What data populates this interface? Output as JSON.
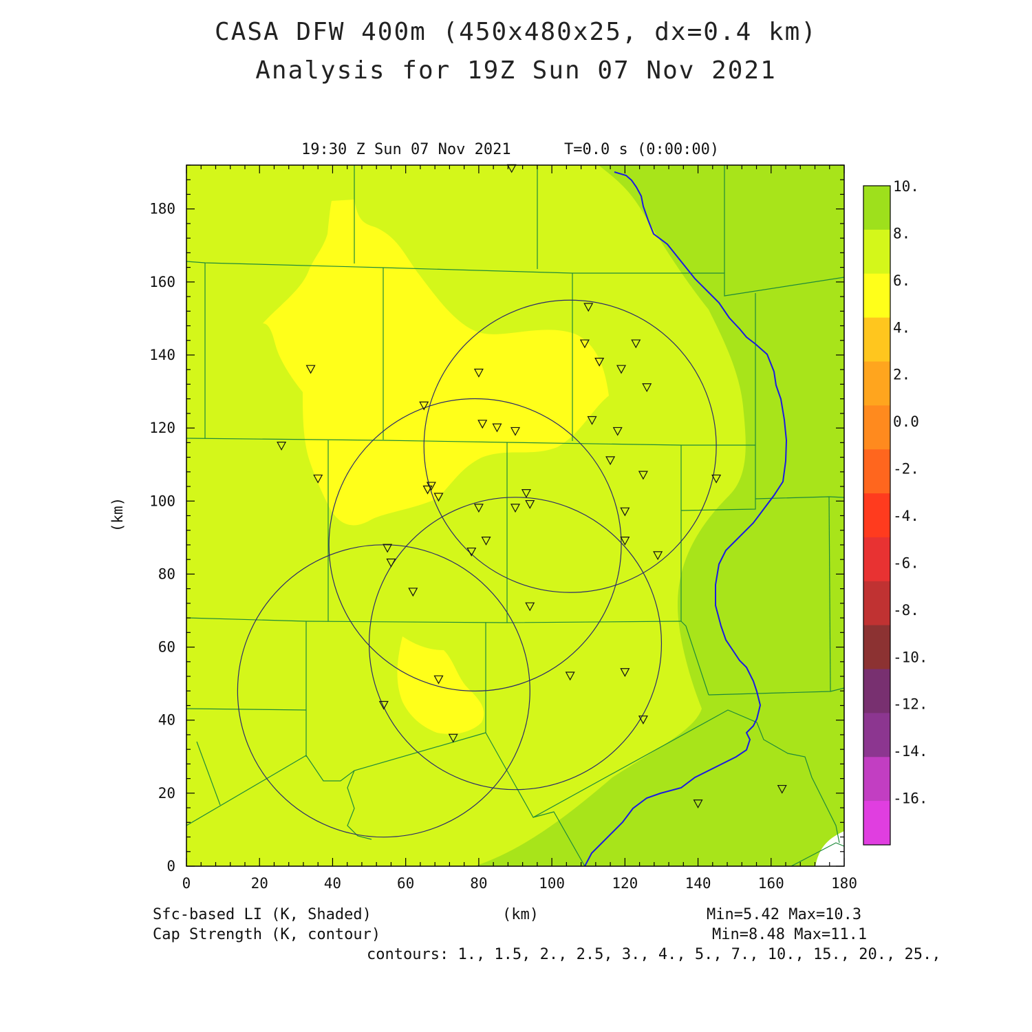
{
  "header": {
    "title_line1": "CASA DFW 400m (450x480x25, dx=0.4 km)",
    "title_line2": "Analysis for 19Z Sun 07 Nov 2021"
  },
  "plot": {
    "time_label": "19:30 Z Sun 07 Nov 2021",
    "t_label": "T=0.0 s (0:00:00)",
    "x_axis_label": "(km)",
    "y_axis_label": "(km)",
    "x_range": [
      0,
      180
    ],
    "y_range": [
      0,
      192
    ],
    "x_ticks": [
      "0",
      "20",
      "40",
      "60",
      "80",
      "100",
      "120",
      "140",
      "160",
      "180"
    ],
    "y_ticks": [
      "0",
      "20",
      "40",
      "60",
      "80",
      "100",
      "120",
      "140",
      "160",
      "180"
    ]
  },
  "colorbar": {
    "labels": [
      "10.",
      "8.",
      "6.",
      "4.",
      "2.",
      "0.0",
      "-2.",
      "-4.",
      "-6.",
      "-8.",
      "-10.",
      "-12.",
      "-14.",
      "-16."
    ],
    "colors": [
      "#9ee01c",
      "#d4f71a",
      "#ffff1a",
      "#ffc61e",
      "#ffa51e",
      "#ff8a1e",
      "#ff661e",
      "#ff3b1e",
      "#e83232",
      "#c03232",
      "#8c3232",
      "#783070",
      "#8c3690",
      "#c23ec2",
      "#e03ee0"
    ]
  },
  "footer": {
    "field1": "Sfc-based LI (K, Shaded)",
    "field1_stats": "Min=5.42 Max=10.3",
    "field2": "Cap Strength (K, contour)",
    "field2_stats": "Min=8.48 Max=11.1",
    "x_unit": "(km)",
    "contours": "contours: 1., 1.5, 2., 2.5, 3., 4., 5., 7., 10., 15., 20., 25.,"
  },
  "map_data": {
    "radar_circles_km": [
      {
        "cx": 105,
        "cy": 115,
        "r": 40
      },
      {
        "cx": 79,
        "cy": 88,
        "r": 40
      },
      {
        "cx": 90,
        "cy": 61,
        "r": 40
      },
      {
        "cx": 54,
        "cy": 48,
        "r": 40
      }
    ],
    "stations_km": [
      [
        89,
        191
      ],
      [
        110,
        153
      ],
      [
        109,
        143
      ],
      [
        123,
        143
      ],
      [
        113,
        138
      ],
      [
        119,
        136
      ],
      [
        126,
        131
      ],
      [
        80,
        135
      ],
      [
        34,
        136
      ],
      [
        65,
        126
      ],
      [
        81,
        121
      ],
      [
        85,
        120
      ],
      [
        90,
        119
      ],
      [
        111,
        122
      ],
      [
        118,
        119
      ],
      [
        26,
        115
      ],
      [
        116,
        111
      ],
      [
        125,
        107
      ],
      [
        145,
        106
      ],
      [
        36,
        106
      ],
      [
        67,
        104
      ],
      [
        66,
        103
      ],
      [
        69,
        101
      ],
      [
        93,
        102
      ],
      [
        94,
        99
      ],
      [
        90,
        98
      ],
      [
        80,
        98
      ],
      [
        120,
        97
      ],
      [
        82,
        89
      ],
      [
        120,
        89
      ],
      [
        78,
        86
      ],
      [
        129,
        85
      ],
      [
        55,
        87
      ],
      [
        56,
        83
      ],
      [
        62,
        75
      ],
      [
        94,
        71
      ],
      [
        69,
        51
      ],
      [
        105,
        52
      ],
      [
        120,
        53
      ],
      [
        54,
        44
      ],
      [
        125,
        40
      ],
      [
        73,
        35
      ],
      [
        140,
        17
      ],
      [
        163,
        21
      ]
    ]
  }
}
